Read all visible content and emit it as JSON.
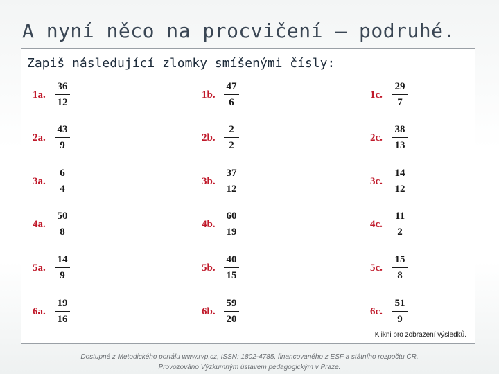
{
  "slide": {
    "title": "A nyní něco na procvičení – podruhé."
  },
  "panel": {
    "heading": "Zapiš následující zlomky smíšenými čísly:",
    "rows": [
      [
        {
          "label": "1a.",
          "num": "36",
          "den": "12"
        },
        {
          "label": "1b.",
          "num": "47",
          "den": "6"
        },
        {
          "label": "1c.",
          "num": "29",
          "den": "7"
        }
      ],
      [
        {
          "label": "2a.",
          "num": "43",
          "den": "9"
        },
        {
          "label": "2b.",
          "num": "2",
          "den": "2"
        },
        {
          "label": "2c.",
          "num": "38",
          "den": "13"
        }
      ],
      [
        {
          "label": "3a.",
          "num": "6",
          "den": "4"
        },
        {
          "label": "3b.",
          "num": "37",
          "den": "12"
        },
        {
          "label": "3c.",
          "num": "14",
          "den": "12"
        }
      ],
      [
        {
          "label": "4a.",
          "num": "50",
          "den": "8"
        },
        {
          "label": "4b.",
          "num": "60",
          "den": "19"
        },
        {
          "label": "4c.",
          "num": "11",
          "den": "2"
        }
      ],
      [
        {
          "label": "5a.",
          "num": "14",
          "den": "9"
        },
        {
          "label": "5b.",
          "num": "40",
          "den": "15"
        },
        {
          "label": "5c.",
          "num": "15",
          "den": "8"
        }
      ],
      [
        {
          "label": "6a.",
          "num": "19",
          "den": "16"
        },
        {
          "label": "6b.",
          "num": "59",
          "den": "20"
        },
        {
          "label": "6c.",
          "num": "51",
          "den": "9"
        }
      ]
    ],
    "results_link": "Klikni pro zobrazení výsledků."
  },
  "footer": {
    "line1": "Dostupné z Metodického portálu www.rvp.cz, ISSN: 1802-4785, financovaného z ESF a státního rozpočtu ČR.",
    "line2": "Provozováno Výzkumným ústavem pedagogickým v Praze."
  },
  "colors": {
    "label_red": "#c0192a",
    "title": "#3a4654"
  }
}
